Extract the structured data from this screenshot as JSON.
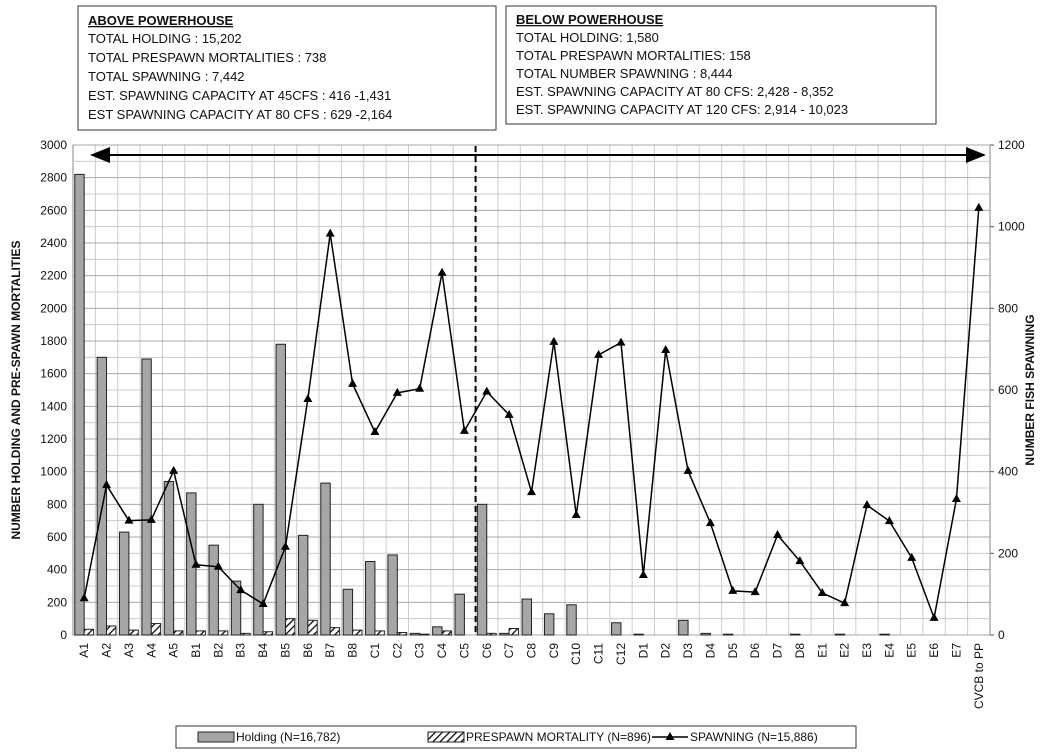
{
  "chart_data": {
    "type": "bar-line",
    "boxes": [
      {
        "title": "ABOVE  POWERHOUSE",
        "lines": [
          "TOTAL  HOLDING  :  15,202",
          "TOTAL  PRESPAWN  MORTALITIES  :  738",
          "TOTAL  SPAWNING : 7,442",
          "EST. SPAWNING CAPACITY  AT 45CFS :  416 -1,431",
          "EST SPAWNING CAPACITY  AT 80 CFS : 629 -2,164"
        ]
      },
      {
        "title": "BELOW POWERHOUSE",
        "lines": [
          "TOTAL HOLDING:   1,580",
          "TOTAL  PRESPAWN MORTALITIES:   158",
          "TOTAL NUMBER SPAWNING :  8,444",
          "EST. SPAWNING CAPACITY AT 80 CFS:  2,428 - 8,352",
          "EST. SPAWNING CAPACITY AT 120 CFS: 2,914 - 10,023"
        ]
      }
    ],
    "ylabel": "NUMBER HOLDING AND PRE-SPAWN MORTALITIES",
    "y2label": "NUMBER FISH SPAWNING",
    "categories": [
      "A1",
      "A2",
      "A3",
      "A4",
      "A5",
      "B1",
      "B2",
      "B3",
      "B4",
      "B5",
      "B6",
      "B7",
      "B8",
      "C1",
      "C2",
      "C3",
      "C4",
      "C5",
      "C6",
      "C7",
      "C8",
      "C9",
      "C10",
      "C11",
      "C12",
      "D1",
      "D2",
      "D3",
      "D4",
      "D5",
      "D6",
      "D7",
      "D8",
      "E1",
      "E2",
      "E3",
      "E4",
      "E5",
      "E6",
      "E7",
      "CVCB to PP"
    ],
    "series": [
      {
        "name": "Holding (N=16,782)",
        "color": "#a6a6a6",
        "kind": "bar",
        "values": [
          2820,
          1700,
          630,
          1690,
          940,
          870,
          550,
          330,
          800,
          1780,
          610,
          930,
          280,
          450,
          490,
          10,
          50,
          250,
          800,
          10,
          220,
          130,
          185,
          0,
          75,
          5,
          0,
          90,
          10,
          5,
          0,
          0,
          5,
          0,
          5,
          0,
          5,
          0,
          0,
          0,
          0
        ]
      },
      {
        "name": "PRESPAWN MORTALITY (N=896)",
        "color": "#ffffff",
        "kind": "bar",
        "values": [
          35,
          55,
          30,
          70,
          25,
          25,
          25,
          10,
          20,
          100,
          90,
          45,
          30,
          25,
          15,
          5,
          25,
          0,
          10,
          40,
          0,
          0,
          0,
          0,
          0,
          0,
          0,
          0,
          0,
          0,
          0,
          0,
          0,
          0,
          0,
          0,
          0,
          0,
          0,
          0,
          0
        ]
      },
      {
        "name": "SPAWNING (N=15,886)",
        "color": "#000000",
        "kind": "line",
        "axis": "y2",
        "values": [
          90,
          367,
          280,
          282,
          402,
          172,
          167,
          110,
          76,
          216,
          578,
          983,
          615,
          497,
          593,
          603,
          887,
          500,
          596,
          539,
          350,
          718,
          294,
          686,
          716,
          147,
          698,
          402,
          274,
          108,
          105,
          245,
          181,
          103,
          78,
          318,
          279,
          189,
          42,
          333,
          1046
        ]
      }
    ],
    "ylim": [
      0,
      3000
    ],
    "yticks": [
      0,
      200,
      400,
      600,
      800,
      1000,
      1200,
      1400,
      1600,
      1800,
      2000,
      2200,
      2400,
      2600,
      2800,
      3000
    ],
    "y2lim": [
      0,
      1200
    ],
    "y2ticks": [
      0,
      200,
      400,
      600,
      800,
      1000,
      1200
    ],
    "grid": true
  }
}
